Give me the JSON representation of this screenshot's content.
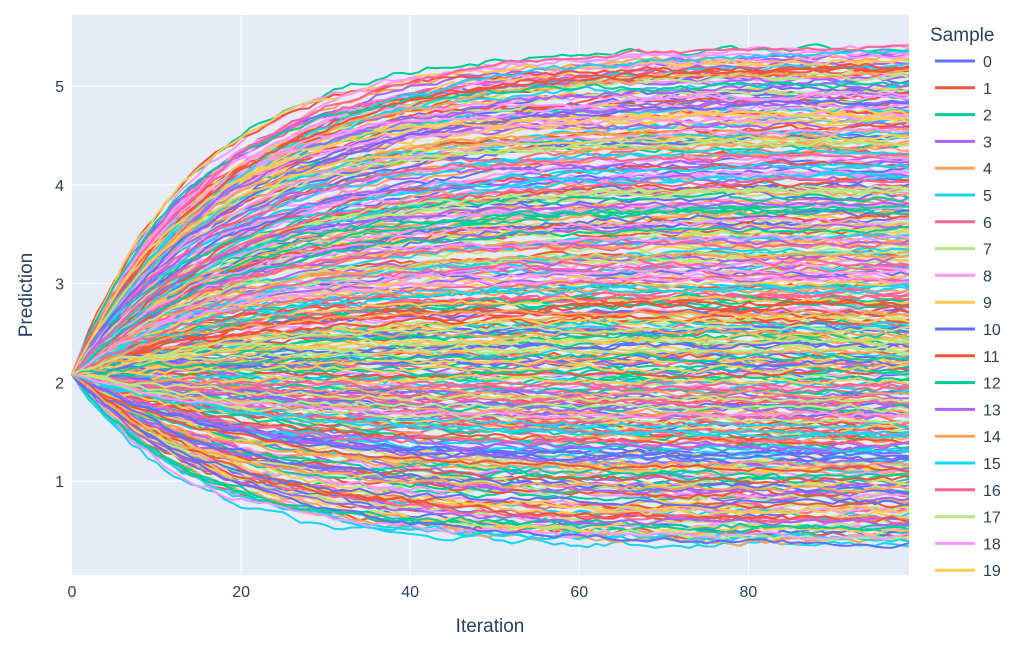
{
  "chart_data": {
    "type": "line",
    "title": "",
    "xlabel": "Iteration",
    "ylabel": "Prediction",
    "xlim": [
      0,
      99
    ],
    "ylim": [
      0.05,
      5.72
    ],
    "x_ticks": [
      0,
      20,
      40,
      60,
      80
    ],
    "x_tick_labels": [
      "0",
      "20",
      "40",
      "60",
      "80"
    ],
    "y_ticks": [
      1,
      2,
      3,
      4,
      5
    ],
    "y_tick_labels": [
      "1",
      "2",
      "3",
      "4",
      "5"
    ],
    "grid": true,
    "legend": {
      "title": "Sample",
      "placement": "right"
    },
    "iterations": {
      "start": 0,
      "end": 99,
      "step": 1
    },
    "start_value": 2.08,
    "series": [
      {
        "name": "0",
        "color": "#636efa",
        "final": 4.86
      },
      {
        "name": "1",
        "color": "#EF553B",
        "final": 1.12
      },
      {
        "name": "2",
        "color": "#00cc96",
        "final": 3.55
      },
      {
        "name": "3",
        "color": "#ab63fa",
        "final": 0.58
      },
      {
        "name": "4",
        "color": "#FFA15A",
        "final": 2.71
      },
      {
        "name": "5",
        "color": "#19d3f3",
        "final": 4.22
      },
      {
        "name": "6",
        "color": "#FF6692",
        "final": 5.42
      },
      {
        "name": "7",
        "color": "#B6E880",
        "final": 1.83
      },
      {
        "name": "8",
        "color": "#FF97FF",
        "final": 3.05
      },
      {
        "name": "9",
        "color": "#FECB52",
        "final": 4.48
      },
      {
        "name": "10",
        "color": "#636efa",
        "final": 0.35
      },
      {
        "name": "11",
        "color": "#EF553B",
        "final": 5.18
      },
      {
        "name": "12",
        "color": "#00cc96",
        "final": 2.26
      },
      {
        "name": "13",
        "color": "#ab63fa",
        "final": 3.82
      },
      {
        "name": "14",
        "color": "#FFA15A",
        "final": 0.92
      },
      {
        "name": "15",
        "color": "#19d3f3",
        "final": 1.47
      },
      {
        "name": "16",
        "color": "#FF6692",
        "final": 4.05
      },
      {
        "name": "17",
        "color": "#B6E880",
        "final": 2.55
      },
      {
        "name": "18",
        "color": "#FF97FF",
        "final": 1.68
      },
      {
        "name": "19",
        "color": "#FECB52",
        "final": 4.71
      }
    ]
  }
}
